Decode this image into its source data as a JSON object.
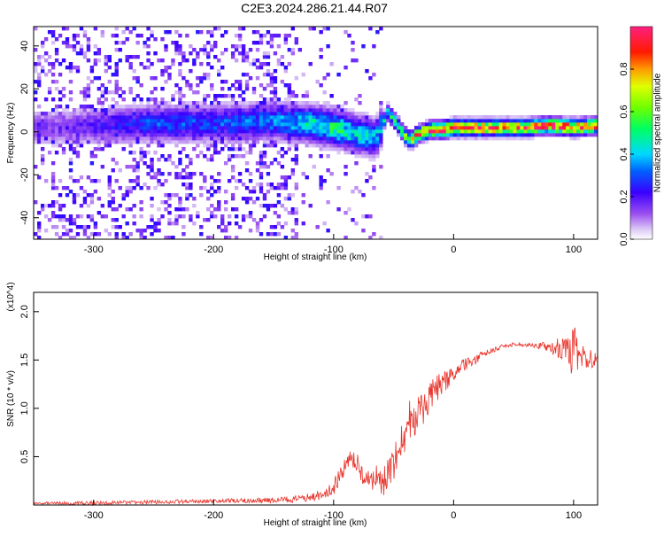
{
  "title": "C2E3.2024.286.21.44.R07",
  "colors": {
    "snr_line": "#e8332a",
    "axis": "#000000",
    "background": "#ffffff"
  },
  "chart_data": [
    {
      "type": "heatmap",
      "title": "C2E3.2024.286.21.44.R07",
      "xlabel": "Height of straight line (km)",
      "ylabel": "Frequency (Hz)",
      "xlim": [
        -350,
        120
      ],
      "ylim": [
        -50,
        49
      ],
      "xticks": [
        -300,
        -200,
        -100,
        0,
        100
      ],
      "yticks": [
        -40,
        -20,
        0,
        20,
        40
      ],
      "colorbar": {
        "label": "Normalized spectral amplitude",
        "range": [
          0.0,
          1.0
        ],
        "ticks": [
          0.0,
          0.2,
          0.4,
          0.6,
          0.8
        ],
        "colormap": "rainbow (purple-blue-cyan-green-yellow-orange-red-pink)"
      },
      "ridge": {
        "description": "frequency of peak amplitude vs height",
        "x": [
          -330,
          -300,
          -250,
          -200,
          -150,
          -120,
          -100,
          -80,
          -65,
          -55,
          -50,
          -45,
          -40,
          -35,
          -30,
          -20,
          -10,
          0,
          20,
          40,
          60,
          80,
          100,
          120
        ],
        "y": [
          2,
          3,
          4,
          4,
          5,
          4,
          2,
          -1,
          -3,
          9,
          6,
          2,
          -2,
          -4,
          -1,
          1,
          1,
          2,
          2,
          2,
          2,
          3,
          2,
          3
        ],
        "amplitude": [
          0.15,
          0.2,
          0.3,
          0.3,
          0.35,
          0.45,
          0.5,
          0.45,
          0.4,
          0.45,
          0.5,
          0.55,
          0.6,
          0.7,
          0.85,
          0.9,
          0.9,
          0.95,
          0.95,
          0.9,
          0.9,
          0.95,
          0.95,
          0.9
        ]
      },
      "grid": false
    },
    {
      "type": "line",
      "xlabel": "Height of straight line (km)",
      "ylabel": "SNR (10 * v/v)",
      "ylabel_multiplier": "(x10^4)",
      "xlim": [
        -350,
        120
      ],
      "ylim": [
        0,
        2.2
      ],
      "xticks": [
        -300,
        -200,
        -100,
        0,
        100
      ],
      "yticks": [
        0.5,
        1.0,
        1.5,
        2.0
      ],
      "ytick_labels": [
        "0.5",
        "1.0",
        "1.5",
        "2.0"
      ],
      "series": [
        {
          "x": [
            -350,
            -300,
            -250,
            -200,
            -150,
            -130,
            -110,
            -100,
            -95,
            -90,
            -85,
            -80,
            -75,
            -70,
            -65,
            -60,
            -55,
            -50,
            -45,
            -40,
            -35,
            -30,
            -25,
            -20,
            -15,
            -10,
            -5,
            0,
            5,
            10,
            15,
            20,
            25,
            30,
            40,
            50,
            60,
            70,
            80,
            90,
            95,
            100,
            105,
            110,
            115,
            120
          ],
          "y": [
            0.02,
            0.02,
            0.03,
            0.04,
            0.05,
            0.06,
            0.1,
            0.18,
            0.28,
            0.38,
            0.45,
            0.4,
            0.3,
            0.25,
            0.28,
            0.22,
            0.3,
            0.4,
            0.55,
            0.75,
            0.9,
            0.95,
            1.0,
            1.1,
            1.2,
            1.25,
            1.3,
            1.35,
            1.4,
            1.45,
            1.5,
            1.52,
            1.56,
            1.58,
            1.64,
            1.66,
            1.66,
            1.65,
            1.63,
            1.62,
            1.6,
            1.58,
            1.55,
            1.53,
            1.51,
            1.52
          ],
          "noise": [
            0.01,
            0.02,
            0.02,
            0.02,
            0.03,
            0.04,
            0.05,
            0.08,
            0.12,
            0.14,
            0.12,
            0.12,
            0.1,
            0.1,
            0.14,
            0.14,
            0.18,
            0.2,
            0.22,
            0.25,
            0.22,
            0.2,
            0.18,
            0.16,
            0.14,
            0.12,
            0.1,
            0.08,
            0.08,
            0.07,
            0.06,
            0.05,
            0.04,
            0.03,
            0.02,
            0.02,
            0.02,
            0.03,
            0.06,
            0.12,
            0.16,
            0.3,
            0.16,
            0.12,
            0.1,
            0.04
          ]
        }
      ],
      "grid": false
    }
  ]
}
